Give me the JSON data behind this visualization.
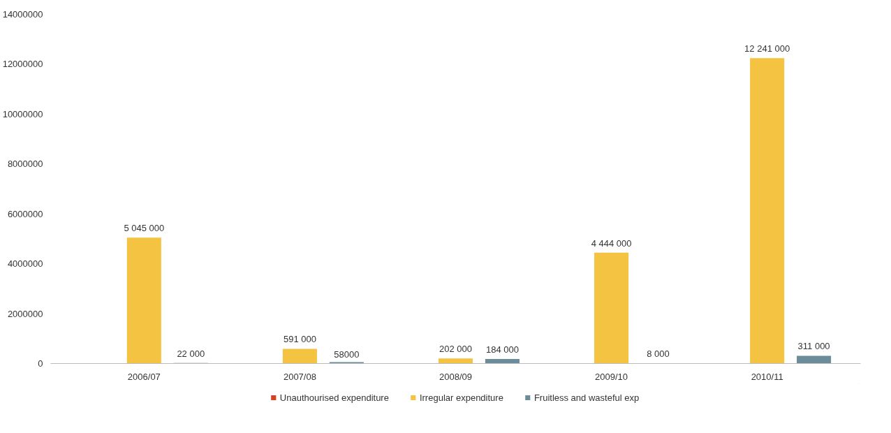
{
  "chart_data": {
    "type": "bar",
    "categories": [
      "2006/07",
      "2007/08",
      "2008/09",
      "2009/10",
      "2010/11"
    ],
    "series": [
      {
        "name": "Unauthourised expenditure",
        "color": "#d9401f",
        "values": [
          0,
          0,
          0,
          0,
          0
        ],
        "value_labels": [
          null,
          null,
          null,
          null,
          null
        ]
      },
      {
        "name": "Irregular expenditure",
        "color": "#f5c342",
        "values": [
          5045000,
          591000,
          202000,
          4444000,
          12241000
        ],
        "value_labels": [
          "5 045 000",
          "591 000",
          "202 000",
          "4 444 000",
          "12 241 000"
        ]
      },
      {
        "name": "Fruitless and wasteful exp",
        "color": "#6a8d99",
        "values": [
          22000,
          58000,
          184000,
          8000,
          311000
        ],
        "value_labels": [
          "22 000",
          "58000",
          "184 000",
          "8 000",
          "311 000"
        ]
      }
    ],
    "ylim": [
      0,
      14000000
    ],
    "yticks": [
      0,
      2000000,
      4000000,
      6000000,
      8000000,
      10000000,
      12000000,
      14000000
    ],
    "grid": false,
    "legend": "bottom"
  }
}
